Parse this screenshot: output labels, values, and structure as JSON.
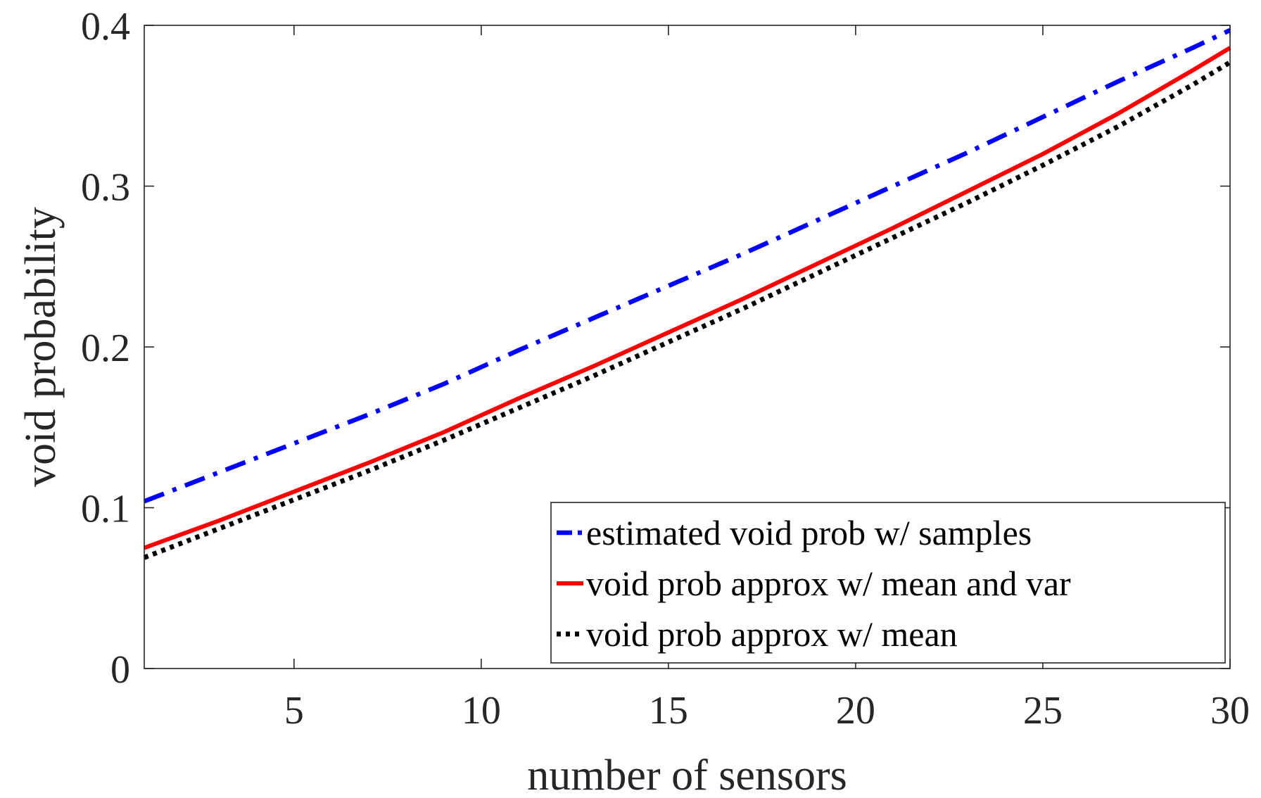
{
  "chart_data": {
    "type": "line",
    "title": "",
    "xlabel": "number of sensors",
    "ylabel": "void probability",
    "xlim": [
      1,
      30
    ],
    "ylim": [
      0,
      0.4
    ],
    "xticks": [
      5,
      10,
      15,
      20,
      25,
      30
    ],
    "yticks": [
      0,
      0.1,
      0.2,
      0.3,
      0.4
    ],
    "xtick_labels": [
      "5",
      "10",
      "15",
      "20",
      "25",
      "30"
    ],
    "ytick_labels": [
      "0",
      "0.1",
      "0.2",
      "0.3",
      "0.4"
    ],
    "grid": false,
    "legend_position": "bottom-right",
    "x": [
      1,
      3,
      5,
      7,
      9,
      11,
      13,
      15,
      17,
      19,
      21,
      23,
      25,
      27,
      29,
      30
    ],
    "series": [
      {
        "name": "estimated void prob w/ samples",
        "color": "#0000ff",
        "style": "dashdot",
        "values": [
          0.104,
          0.122,
          0.14,
          0.158,
          0.177,
          0.198,
          0.218,
          0.238,
          0.258,
          0.279,
          0.3,
          0.321,
          0.343,
          0.365,
          0.386,
          0.397
        ]
      },
      {
        "name": "void prob approx w/ mean and var",
        "color": "#ff0000",
        "style": "solid",
        "values": [
          0.075,
          0.092,
          0.11,
          0.128,
          0.147,
          0.168,
          0.188,
          0.209,
          0.23,
          0.252,
          0.274,
          0.297,
          0.32,
          0.345,
          0.372,
          0.386
        ]
      },
      {
        "name": "void prob approx w/ mean",
        "color": "#000000",
        "style": "dotted",
        "values": [
          0.069,
          0.087,
          0.105,
          0.123,
          0.142,
          0.162,
          0.182,
          0.203,
          0.224,
          0.246,
          0.268,
          0.29,
          0.313,
          0.337,
          0.363,
          0.377
        ]
      }
    ]
  }
}
